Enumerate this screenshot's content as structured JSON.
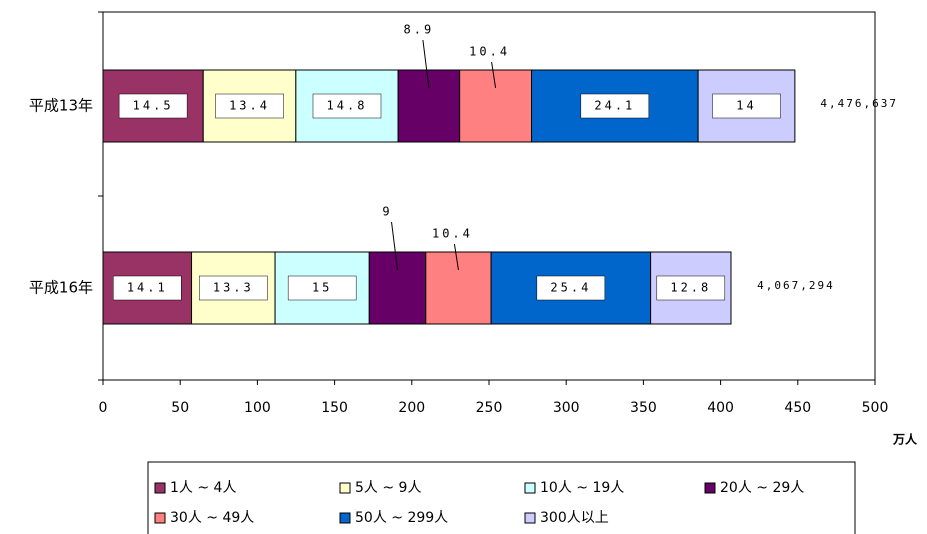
{
  "chart_data": {
    "type": "stacked-bar-horizontal",
    "categories": [
      "平成13年",
      "平成16年"
    ],
    "x_axis_label": "万人",
    "xlim": [
      0,
      500
    ],
    "xticks": [
      0,
      50,
      100,
      150,
      200,
      250,
      300,
      350,
      400,
      450,
      500
    ],
    "totals": {
      "values": [
        447.6637,
        406.7294
      ],
      "value_labels": [
        "4,476,637",
        "4,067,294"
      ]
    },
    "series": [
      {
        "name": "1人 ~ 4人",
        "color": "#993366",
        "values": [
          14.5,
          14.1
        ]
      },
      {
        "name": "5人 ~ 9人",
        "color": "#ffffcc",
        "values": [
          13.4,
          13.3
        ]
      },
      {
        "name": "10人 ~ 19人",
        "color": "#ccffff",
        "values": [
          14.8,
          15.0
        ]
      },
      {
        "name": "20人 ~ 29人",
        "color": "#660066",
        "values": [
          8.9,
          9.0
        ]
      },
      {
        "name": "30人 ~ 49人",
        "color": "#ff8080",
        "values": [
          10.4,
          10.4
        ]
      },
      {
        "name": "50人 ~ 299人",
        "color": "#0066cc",
        "values": [
          24.1,
          25.4
        ]
      },
      {
        "name": "300人以上",
        "color": "#ccccff",
        "values": [
          14.0,
          12.8
        ]
      }
    ]
  }
}
